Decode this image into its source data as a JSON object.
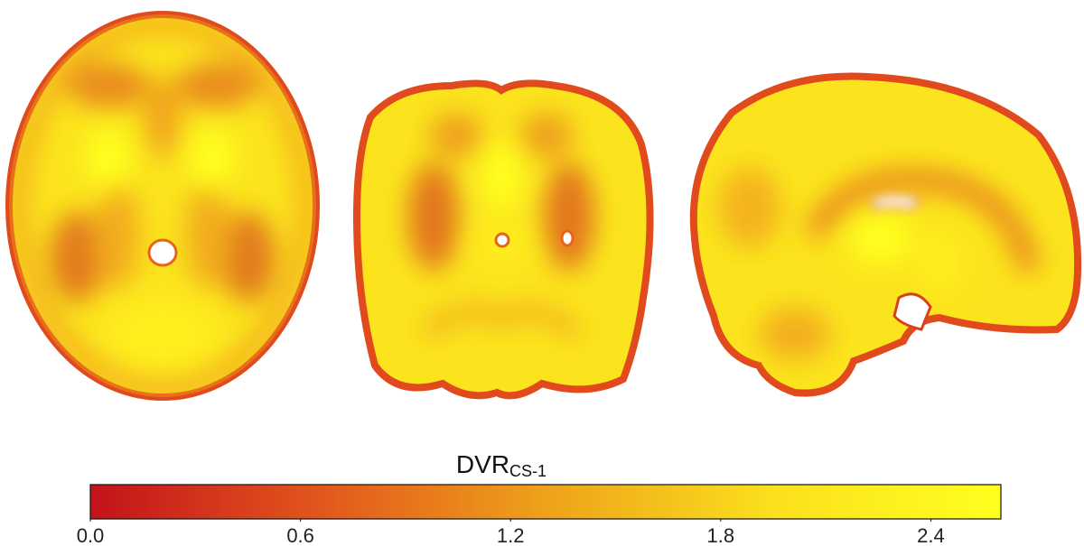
{
  "colorbar": {
    "label": "DVR",
    "label_subscript": "CS-1",
    "range": [
      0,
      2.6
    ],
    "ticks": [
      {
        "value": 0,
        "label": "0.0"
      },
      {
        "value": 0.6,
        "label": "0.6"
      },
      {
        "value": 1.2,
        "label": "1.2"
      },
      {
        "value": 1.8,
        "label": "1.8"
      },
      {
        "value": 2.4,
        "label": "2.4"
      }
    ],
    "colors": [
      "#c3121b",
      "#e2561c",
      "#eea21a",
      "#fbe01d",
      "#ffff1e"
    ]
  }
}
